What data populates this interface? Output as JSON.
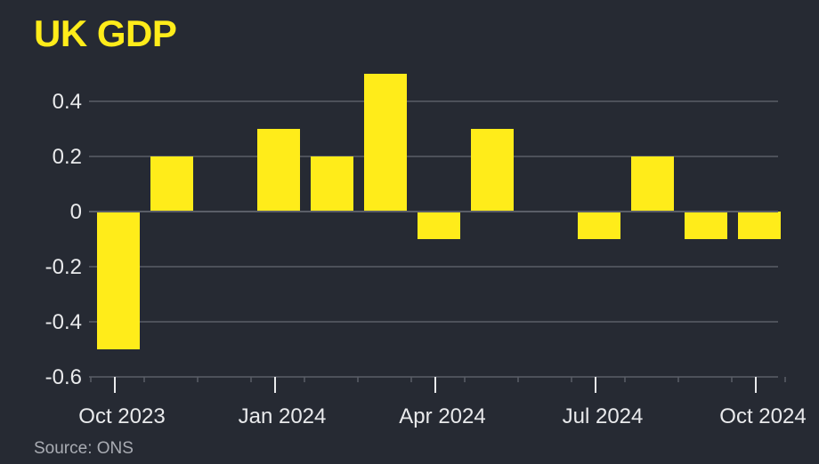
{
  "title": "UK GDP",
  "source": "Source: ONS",
  "colors": {
    "background": "#262a33",
    "bar": "#ffec1a",
    "title": "#ffec1a",
    "grid": "#5a5e68",
    "text": "#e9eaec"
  },
  "chart_data": {
    "type": "bar",
    "title": "UK GDP",
    "xlabel": "",
    "ylabel": "",
    "ylim": [
      -0.6,
      0.5
    ],
    "yticks": [
      0.4,
      0.2,
      0,
      -0.2,
      -0.4,
      -0.6
    ],
    "ytick_labels": [
      "0.4",
      "0.2",
      "0",
      "-0.2",
      "-0.4",
      "-0.6"
    ],
    "x_tick_labels": [
      "Oct 2023",
      "Jan 2024",
      "Apr 2024",
      "Jul 2024",
      "Oct 2024"
    ],
    "categories": [
      "2023-10",
      "2023-11",
      "2023-12",
      "2024-01",
      "2024-02",
      "2024-03",
      "2024-04",
      "2024-05",
      "2024-06",
      "2024-07",
      "2024-08",
      "2024-09",
      "2024-10"
    ],
    "values": [
      -0.5,
      0.2,
      0.0,
      0.3,
      0.2,
      0.5,
      -0.1,
      0.3,
      0.0,
      -0.1,
      0.2,
      -0.1,
      -0.1
    ],
    "grid": true,
    "legend": "none"
  }
}
